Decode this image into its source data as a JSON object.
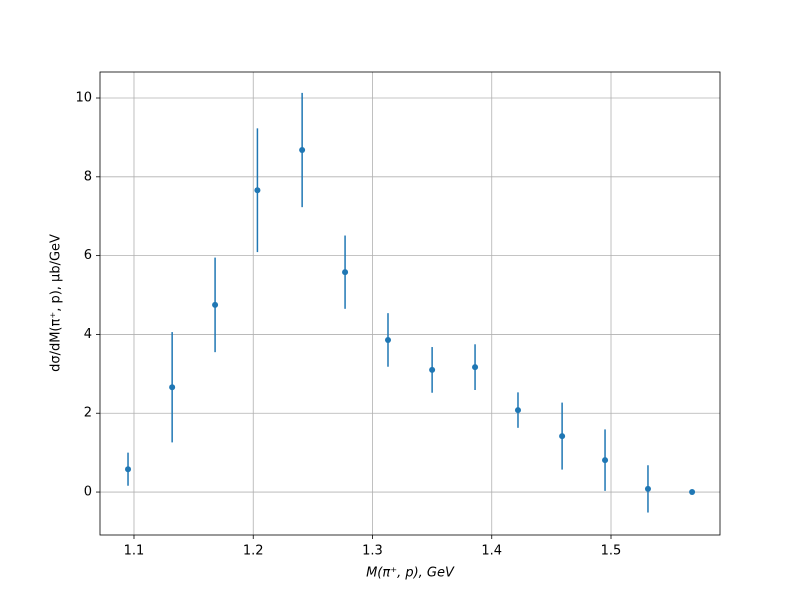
{
  "chart_data": {
    "type": "errorbar",
    "xlabel": "M(π⁺, p), GeV",
    "ylabel": "dσ/dM(π⁺, p), μb/GeV",
    "x": [
      1.095,
      1.132,
      1.168,
      1.2035,
      1.241,
      1.277,
      1.313,
      1.35,
      1.386,
      1.422,
      1.459,
      1.495,
      1.531,
      1.568
    ],
    "series": [
      {
        "color": "#1f77b4",
        "values": [
          0.58,
          2.66,
          4.75,
          7.66,
          8.68,
          5.58,
          3.86,
          3.1,
          3.17,
          2.08,
          1.42,
          0.81,
          0.08,
          0
        ],
        "errors": [
          0.42,
          1.4,
          1.2,
          1.57,
          1.45,
          0.93,
          0.68,
          0.58,
          0.58,
          0.45,
          0.85,
          0.78,
          0.6,
          0
        ]
      }
    ],
    "xlim": [
      1.0715,
      1.5914
    ],
    "ylim": [
      -1.09,
      10.66
    ],
    "xticks": [
      1.1,
      1.2,
      1.3,
      1.4,
      1.5
    ],
    "yticks": [
      0,
      2,
      4,
      6,
      8,
      10
    ],
    "grid": true
  }
}
